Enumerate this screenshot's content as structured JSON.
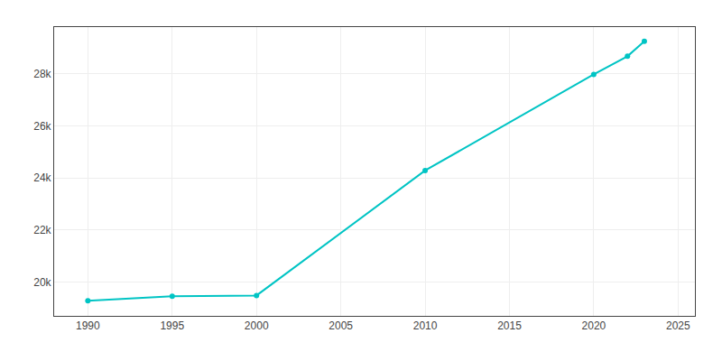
{
  "chart_data": {
    "type": "line",
    "x": [
      1990,
      1995,
      2000,
      2010,
      2020,
      2022,
      2023
    ],
    "values": [
      19279,
      19454,
      19484,
      24286,
      27982,
      28679,
      29257
    ],
    "color": "#00C4C4",
    "marker": "circle",
    "line_style": "solid",
    "xlim": [
      1988,
      2026
    ],
    "ylim": [
      18700,
      29800
    ],
    "xticks": [
      1990,
      1995,
      2000,
      2005,
      2010,
      2015,
      2020,
      2025
    ],
    "yticks": [
      {
        "value": 20000,
        "label": "20k"
      },
      {
        "value": 22000,
        "label": "22k"
      },
      {
        "value": 24000,
        "label": "24k"
      },
      {
        "value": 26000,
        "label": "26k"
      },
      {
        "value": 28000,
        "label": "28k"
      }
    ],
    "grid": true
  }
}
